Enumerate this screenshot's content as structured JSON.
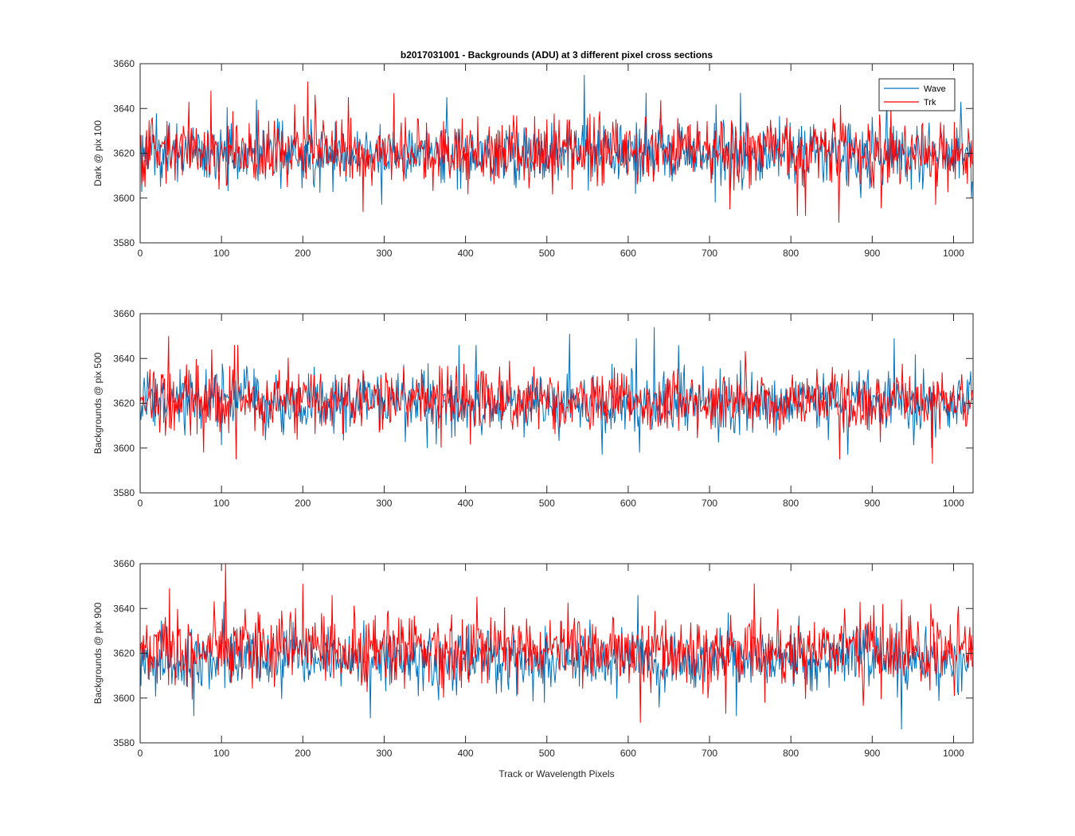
{
  "figure": {
    "title": "b2017031001 - Backgrounds (ADU) at 3 different pixel cross sections",
    "xlabel": "Track or Wavelength Pixels"
  },
  "legend": {
    "items": [
      {
        "label": "Wave",
        "color": "#0072BD"
      },
      {
        "label": "Trk",
        "color": "#FF0000"
      }
    ],
    "placement": "top-right"
  },
  "chart_data": [
    {
      "type": "line",
      "ylabel": "Dark @ pix 100",
      "xlim": [
        0,
        1024
      ],
      "ylim": [
        3580,
        3660
      ],
      "xticks": [
        0,
        100,
        200,
        300,
        400,
        500,
        600,
        700,
        800,
        900,
        1000
      ],
      "yticks": [
        3580,
        3600,
        3620,
        3640,
        3660
      ],
      "grid": false,
      "series": [
        {
          "name": "Wave",
          "color": "#0072BD",
          "n_points": 1024,
          "mean": 3620,
          "approx_min": 3597,
          "approx_max": 3655,
          "spikes": [
            [
              546,
              3655
            ],
            [
              143,
              3644
            ],
            [
              377,
              3645
            ],
            [
              622,
              3647
            ],
            [
              738,
              3647
            ],
            [
              918,
              3645
            ],
            [
              1009,
              3643
            ],
            [
              297,
              3597
            ],
            [
              707,
              3598
            ],
            [
              886,
              3600
            ]
          ]
        },
        {
          "name": "Trk",
          "color": "#FF0000",
          "n_points": 1024,
          "mean": 3621,
          "approx_min": 3589,
          "approx_max": 3652,
          "spikes": [
            [
              206,
              3652
            ],
            [
              87,
              3648
            ],
            [
              60,
              3643
            ],
            [
              256,
              3645
            ],
            [
              859,
              3589
            ],
            [
              808,
              3592
            ],
            [
              818,
              3592
            ],
            [
              725,
              3595
            ],
            [
              978,
              3597
            ]
          ]
        }
      ]
    },
    {
      "type": "line",
      "ylabel": "Backgrounds @ pix 500",
      "xlim": [
        0,
        1024
      ],
      "ylim": [
        3580,
        3660
      ],
      "xticks": [
        0,
        100,
        200,
        300,
        400,
        500,
        600,
        700,
        800,
        900,
        1000
      ],
      "yticks": [
        3580,
        3600,
        3620,
        3640,
        3660
      ],
      "grid": false,
      "series": [
        {
          "name": "Wave",
          "color": "#0072BD",
          "n_points": 1024,
          "mean": 3620,
          "approx_min": 3597,
          "approx_max": 3654,
          "spikes": [
            [
              632,
              3654
            ],
            [
              528,
              3651
            ],
            [
              610,
              3649
            ],
            [
              927,
              3649
            ],
            [
              392,
              3646
            ],
            [
              413,
              3646
            ],
            [
              662,
              3646
            ],
            [
              568,
              3597
            ],
            [
              614,
              3598
            ],
            [
              870,
              3597
            ]
          ]
        },
        {
          "name": "Trk",
          "color": "#FF0000",
          "n_points": 1024,
          "mean": 3621,
          "approx_min": 3593,
          "approx_max": 3650,
          "spikes": [
            [
              35,
              3650
            ],
            [
              116,
              3646
            ],
            [
              120,
              3646
            ],
            [
              88,
              3644
            ],
            [
              118,
              3595
            ],
            [
              860,
              3595
            ],
            [
              974,
              3593
            ],
            [
              78,
              3598
            ]
          ]
        }
      ]
    },
    {
      "type": "line",
      "ylabel": "Backgrounds @ pix 900",
      "xlim": [
        0,
        1024
      ],
      "ylim": [
        3580,
        3660
      ],
      "xticks": [
        0,
        100,
        200,
        300,
        400,
        500,
        600,
        700,
        800,
        900,
        1000
      ],
      "yticks": [
        3580,
        3600,
        3620,
        3640,
        3660
      ],
      "grid": false,
      "series": [
        {
          "name": "Wave",
          "color": "#0072BD",
          "n_points": 1024,
          "mean": 3617,
          "approx_min": 3586,
          "approx_max": 3646,
          "spikes": [
            [
              612,
              3646
            ],
            [
              103,
              3643
            ],
            [
              283,
              3591
            ],
            [
              66,
              3592
            ],
            [
              936,
              3586
            ],
            [
              733,
              3592
            ]
          ]
        },
        {
          "name": "Trk",
          "color": "#FF0000",
          "n_points": 1024,
          "mean": 3622,
          "approx_min": 3589,
          "approx_max": 3660,
          "spikes": [
            [
              105,
              3660
            ],
            [
              200,
              3651
            ],
            [
              236,
              3646
            ],
            [
              36,
              3649
            ],
            [
              936,
              3644
            ],
            [
              1006,
              3641
            ],
            [
              615,
              3589
            ],
            [
              720,
              3593
            ]
          ]
        }
      ]
    }
  ]
}
